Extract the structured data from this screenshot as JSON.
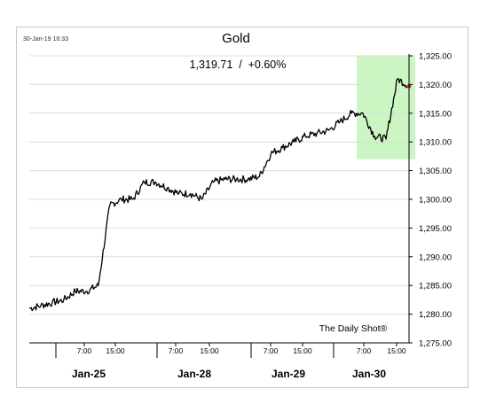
{
  "chart_data": {
    "type": "line",
    "title": "Gold",
    "timestamp": "30-Jan-19 16:33",
    "price_readout": "1,319.71  /  +0.60%",
    "source": "The Daily Shot®",
    "xlabel": "",
    "ylabel": "",
    "ylim": [
      1275,
      1325
    ],
    "y_ticks": [
      "1,275.00",
      "1,280.00",
      "1,285.00",
      "1,290.00",
      "1,295.00",
      "1,300.00",
      "1,305.00",
      "1,310.00",
      "1,315.00",
      "1,320.00",
      "1,325.00"
    ],
    "y_tick_values": [
      1275,
      1280,
      1285,
      1290,
      1295,
      1300,
      1305,
      1310,
      1315,
      1320,
      1325
    ],
    "x_hour_ticks": [
      "7:00",
      "15:00",
      "7:00",
      "15:00",
      "7:00",
      "15:00",
      "7:00",
      "15:00"
    ],
    "x_day_labels": [
      "Jan-25",
      "Jan-28",
      "Jan-29",
      "Jan-30"
    ],
    "grid": "horizontal",
    "highlight": {
      "from_index": 29,
      "to_index": 33,
      "y_range": [
        1307,
        1325
      ],
      "color": "#ccf5c4"
    },
    "last_point_color": "#e02020",
    "series": [
      {
        "name": "",
        "values": [
          1281,
          1281.5,
          1282,
          1282.5,
          1284,
          1284,
          1285,
          1299,
          1300,
          1300,
          1303,
          1303,
          1302,
          1301,
          1301,
          1300,
          1303,
          1303.5,
          1303.5,
          1303.5,
          1304,
          1308,
          1309,
          1310,
          1311,
          1311.5,
          1312,
          1313.5,
          1315,
          1315,
          1311,
          1310.5,
          1321,
          1319.71
        ]
      }
    ]
  }
}
